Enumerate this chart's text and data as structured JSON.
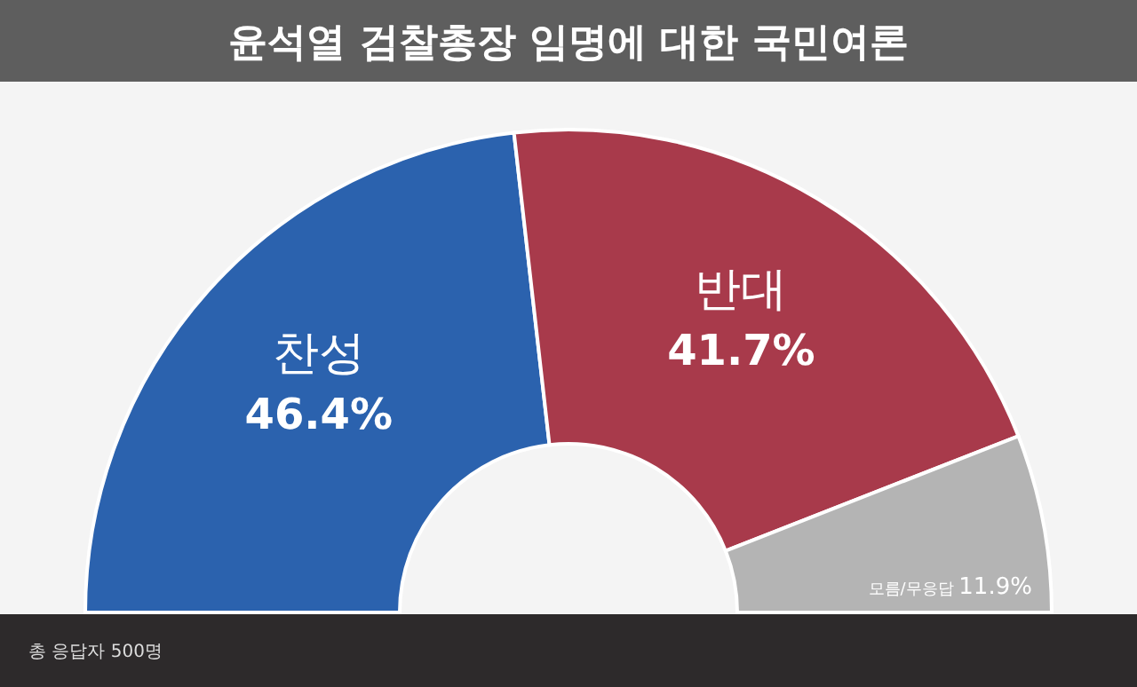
{
  "chart_data": {
    "type": "donut",
    "title": "윤석열 검찰총장 임명에 대한 국민여론",
    "categories": [
      "찬성",
      "반대",
      "모름/무응답"
    ],
    "values": [
      46.4,
      41.7,
      11.9
    ],
    "colors": [
      "#2b62ae",
      "#a83a4b",
      "#b4b4b4"
    ],
    "value_labels": [
      "46.4%",
      "41.7%",
      "11.9%"
    ],
    "annotations": [
      "총 응답자 500명"
    ]
  }
}
